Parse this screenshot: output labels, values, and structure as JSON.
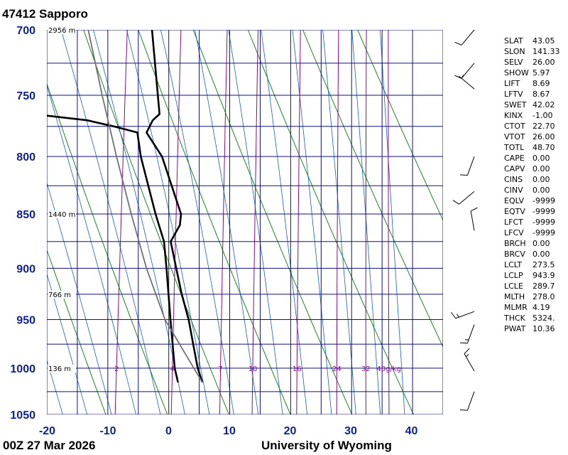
{
  "header": {
    "station": "47412  Sapporo"
  },
  "footer": {
    "time": "00Z 27 Mar 2026",
    "source": "University of Wyoming"
  },
  "chart_data": {
    "type": "line",
    "title": "47412  Sapporo",
    "pressure_levels": [
      {
        "p": 700,
        "label": "700"
      },
      {
        "p": 750,
        "label": "750"
      },
      {
        "p": 800,
        "label": "800"
      },
      {
        "p": 850,
        "label": "850"
      },
      {
        "p": 900,
        "label": "900"
      },
      {
        "p": 950,
        "label": "950"
      },
      {
        "p": 1000,
        "label": "1000"
      },
      {
        "p": 1050,
        "label": "1050"
      }
    ],
    "temperature_ticks": [
      {
        "t": -20,
        "label": "-20"
      },
      {
        "t": -10,
        "label": "-10"
      },
      {
        "t": 0,
        "label": "0"
      },
      {
        "t": 10,
        "label": "10"
      },
      {
        "t": 20,
        "label": "20"
      },
      {
        "t": 30,
        "label": "30"
      },
      {
        "t": 40,
        "label": "40"
      }
    ],
    "height_labels": [
      {
        "p": 700,
        "label": "2956 m"
      },
      {
        "p": 850,
        "label": "1440 m"
      },
      {
        "p": 925,
        "label": "766 m"
      },
      {
        "p": 1000,
        "label": "136 m"
      }
    ],
    "mixing_ratio_labels": [
      {
        "w": 2,
        "label": "2"
      },
      {
        "w": 4,
        "label": "4"
      },
      {
        "w": 7,
        "label": "7"
      },
      {
        "w": 10,
        "label": "10"
      },
      {
        "w": 16,
        "label": "16"
      },
      {
        "w": 24,
        "label": "24"
      },
      {
        "w": 32,
        "label": "32"
      },
      {
        "w": 40,
        "label": "40g/kg"
      }
    ],
    "series": [
      {
        "name": "",
        "data": [
          {
            "p": 1015,
            "t": 5.8
          },
          {
            "p": 1000,
            "t": 4.8
          },
          {
            "p": 975,
            "t": 3.6
          },
          {
            "p": 950,
            "t": 2.4
          },
          {
            "p": 925,
            "t": 0.8
          },
          {
            "p": 900,
            "t": -0.6
          },
          {
            "p": 875,
            "t": -2
          },
          {
            "p": 865,
            "t": -1.2
          },
          {
            "p": 860,
            "t": -0.8
          },
          {
            "p": 850,
            "t": -0.8
          },
          {
            "p": 800,
            "t": -5
          },
          {
            "p": 780,
            "t": -8
          },
          {
            "p": 770,
            "t": -7.2
          },
          {
            "p": 765,
            "t": -6.2
          },
          {
            "p": 760,
            "t": -6.4
          },
          {
            "p": 700,
            "t": -9
          }
        ]
      },
      {
        "name": "",
        "data": [
          {
            "p": 1015,
            "t": 1.8
          },
          {
            "p": 1000,
            "t": 1
          },
          {
            "p": 950,
            "t": -0.6
          },
          {
            "p": 900,
            "t": -2.2
          },
          {
            "p": 875,
            "t": -3.1
          },
          {
            "p": 850,
            "t": -5
          },
          {
            "p": 800,
            "t": -8.5
          },
          {
            "p": 780,
            "t": -9.5
          },
          {
            "p": 775,
            "t": -13.5
          },
          {
            "p": 770,
            "t": -18
          },
          {
            "p": 765,
            "t": -27
          }
        ]
      },
      {
        "name": "",
        "data": [
          {
            "p": 1015,
            "t": 5.8
          },
          {
            "p": 950,
            "t": -1.5
          },
          {
            "p": 900,
            "t": -5.5
          },
          {
            "p": 850,
            "t": -9
          },
          {
            "p": 800,
            "t": -12.5
          },
          {
            "p": 750,
            "t": -16
          },
          {
            "p": 700,
            "t": -19.5
          }
        ]
      }
    ],
    "wind_barbs": [
      {
        "p": 700,
        "dir": 220,
        "kt": 10
      },
      {
        "p": 725,
        "dir": 220,
        "kt": 10
      },
      {
        "p": 745,
        "dir": 310,
        "kt": 5
      },
      {
        "p": 800,
        "dir": 200,
        "kt": 10
      },
      {
        "p": 830,
        "dir": 230,
        "kt": 10
      },
      {
        "p": 865,
        "dir": 350,
        "kt": 10
      },
      {
        "p": 942,
        "dir": 250,
        "kt": 15
      },
      {
        "p": 955,
        "dir": 200,
        "kt": 15
      },
      {
        "p": 1003,
        "dir": 330,
        "kt": 15
      },
      {
        "p": 1025,
        "dir": 200,
        "kt": 10
      }
    ],
    "ylim": [
      1050,
      700
    ],
    "xlim": [
      -20,
      45
    ],
    "skew": "skew-T log-p",
    "grid": true
  },
  "indices": [
    {
      "name": "SLAT",
      "value": "43.05"
    },
    {
      "name": "SLON",
      "value": "141.33"
    },
    {
      "name": "SELV",
      "value": "26.00"
    },
    {
      "name": "SHOW",
      "value": "5.97"
    },
    {
      "name": "LIFT",
      "value": "8.69"
    },
    {
      "name": "LFTV",
      "value": "8.67"
    },
    {
      "name": "SWET",
      "value": "42.02"
    },
    {
      "name": "KINX",
      "value": "-1.00"
    },
    {
      "name": "CTOT",
      "value": "22.70"
    },
    {
      "name": "VTOT",
      "value": "26.00"
    },
    {
      "name": "TOTL",
      "value": "48.70"
    },
    {
      "name": "CAPE",
      "value": "0.00"
    },
    {
      "name": "CAPV",
      "value": "0.00"
    },
    {
      "name": "CINS",
      "value": "0.00"
    },
    {
      "name": "CINV",
      "value": "0.00"
    },
    {
      "name": "EQLV",
      "value": "-9999"
    },
    {
      "name": "EQTV",
      "value": "-9999"
    },
    {
      "name": "LFCT",
      "value": "-9999"
    },
    {
      "name": "LFCV",
      "value": "-9999"
    },
    {
      "name": "BRCH",
      "value": "0.00"
    },
    {
      "name": "BRCV",
      "value": "0.00"
    },
    {
      "name": "LCLT",
      "value": "273.5"
    },
    {
      "name": "LCLP",
      "value": "943.9"
    },
    {
      "name": "LCLE",
      "value": "289.7"
    },
    {
      "name": "MLTH",
      "value": "278.0"
    },
    {
      "name": "MLMR",
      "value": "4.19"
    },
    {
      "name": "THCK",
      "value": "5324."
    },
    {
      "name": "PWAT",
      "value": "10.36"
    }
  ],
  "colors": {
    "grid": "#101080",
    "dry_adiabat": "#1a8a1a",
    "moist_adiabat": "#1060c0",
    "mixing_ratio": "#8a0a8a",
    "profile": "#000000",
    "parcel": "#707070",
    "axis_labels": "#102090"
  }
}
